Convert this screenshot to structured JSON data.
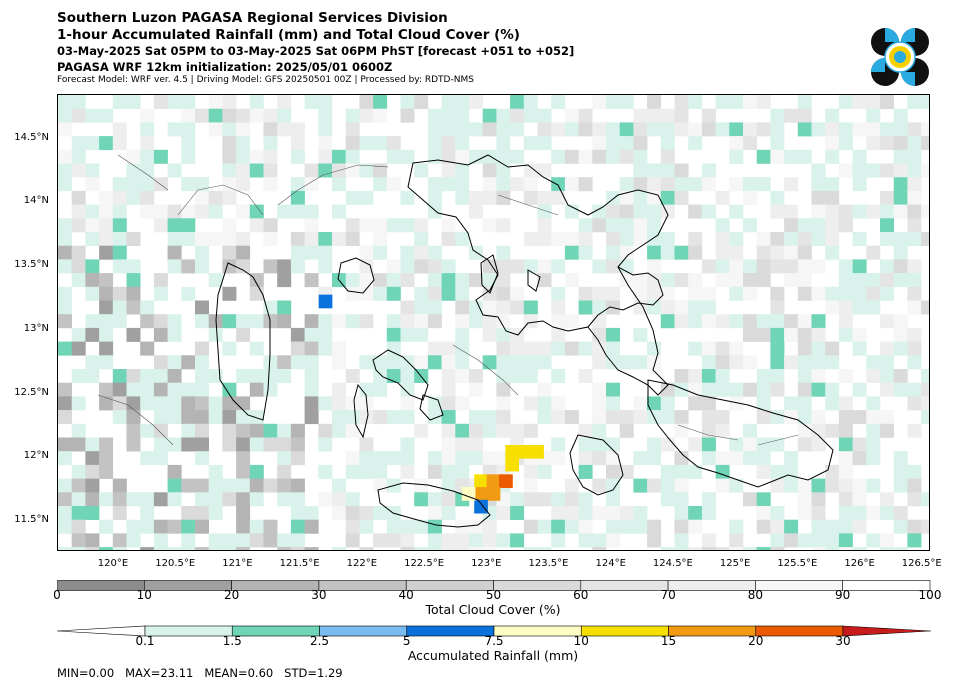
{
  "header": {
    "line1": "Southern Luzon PAGASA Regional Services Division",
    "line2": "1-hour Accumulated Rainfall (mm) and Total Cloud Cover (%)",
    "line3": "03-May-2025 Sat 05PM to 03-May-2025 Sat 06PM PhST [forecast +051 to +052]",
    "line4": "PAGASA WRF 12km initialization: 2025/05/01 0600Z",
    "line5": "Forecast Model: WRF ver. 4.5 | Driving Model: GFS 20250501 00Z | Processed by: RDTD-NMS"
  },
  "logo": {
    "icon": "pagasa-seal-icon",
    "colors": [
      "#111111",
      "#29abe2",
      "#f5d000"
    ]
  },
  "map": {
    "extent": {
      "lon": [
        119.55,
        126.55
      ],
      "lat": [
        11.28,
        14.85
      ]
    },
    "lat_ticks": [
      "14.5°N",
      "14°N",
      "13.5°N",
      "13°N",
      "12.5°N",
      "12°N",
      "11.5°N"
    ],
    "lat_values": [
      14.5,
      14.0,
      13.5,
      13.0,
      12.5,
      12.0,
      11.5
    ],
    "lon_ticks": [
      "120°E",
      "120.5°E",
      "121°E",
      "121.5°E",
      "122°E",
      "122.5°E",
      "123°E",
      "123.5°E",
      "124°E",
      "124.5°E",
      "125°E",
      "125.5°E",
      "126°E",
      "126.5°E"
    ],
    "lon_values": [
      120.0,
      120.5,
      121.0,
      121.5,
      122.0,
      122.5,
      123.0,
      123.5,
      124.0,
      124.5,
      125.0,
      125.5,
      126.0,
      126.5
    ],
    "rain_cells": [
      {
        "lon": 121.7,
        "lat": 13.23,
        "mm": 5.2
      },
      {
        "lon": 122.95,
        "lat": 11.82,
        "mm": 12.0
      },
      {
        "lon": 123.05,
        "lat": 11.82,
        "mm": 16.0
      },
      {
        "lon": 123.15,
        "lat": 11.82,
        "mm": 20.5
      },
      {
        "lon": 122.95,
        "lat": 11.72,
        "mm": 17.0
      },
      {
        "lon": 123.05,
        "lat": 11.72,
        "mm": 18.5
      },
      {
        "lon": 123.2,
        "lat": 12.05,
        "mm": 10.5
      },
      {
        "lon": 123.3,
        "lat": 12.05,
        "mm": 11.5
      },
      {
        "lon": 123.4,
        "lat": 12.05,
        "mm": 11.0
      },
      {
        "lon": 123.2,
        "lat": 11.95,
        "mm": 10.2
      },
      {
        "lon": 122.95,
        "lat": 11.62,
        "mm": 6.0
      },
      {
        "lon": 122.85,
        "lat": 11.72,
        "mm": 8.0
      }
    ]
  },
  "cloud_colorbar": {
    "title": "Total Cloud Cover (%)",
    "ticks": [
      "0",
      "10",
      "20",
      "30",
      "40",
      "50",
      "60",
      "70",
      "80",
      "90",
      "100"
    ],
    "colors": [
      "#8c8c8c",
      "#a0a0a0",
      "#b4b4b4",
      "#c3c3c3",
      "#cfcfcf",
      "#dadada",
      "#e4e4e4",
      "#eeeeee",
      "#f6f6f6",
      "#ffffff"
    ]
  },
  "rain_colorbar": {
    "title": "Accumulated Rainfall (mm)",
    "ticks": [
      "0.1",
      "1.5",
      "2.5",
      "5",
      "7.5",
      "10",
      "15",
      "20",
      "30"
    ],
    "colors": [
      "#d9f2ec",
      "#6fd5b6",
      "#79bcf1",
      "#0a72dc",
      "#fffdc4",
      "#f7df00",
      "#f29b12",
      "#eb5a00",
      "#c81c1c"
    ]
  },
  "stats": "MIN=0.00   MAX=23.11   MEAN=0.60   STD=1.29"
}
